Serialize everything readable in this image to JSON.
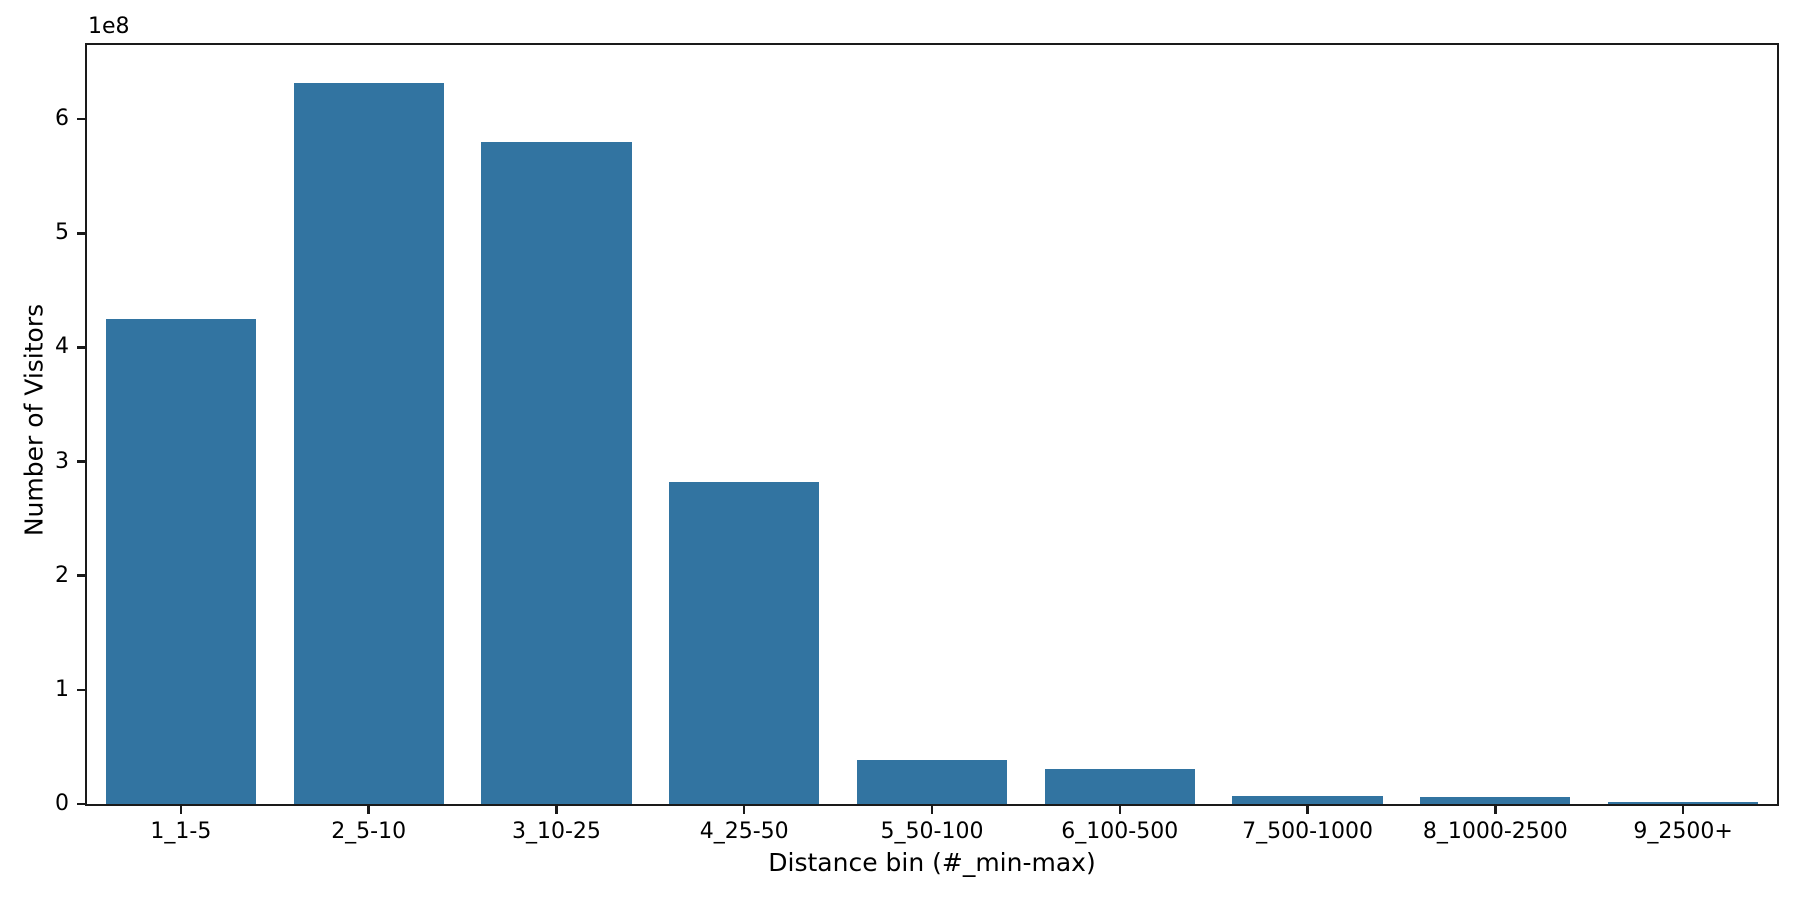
{
  "window": {
    "background": "#ffffff"
  },
  "chart_data": {
    "type": "bar",
    "title": "",
    "xlabel": "Distance bin (#_min-max)",
    "ylabel": "Number of Visitors",
    "y_offset_label": "1e8",
    "categories": [
      "1_1-5",
      "2_5-10",
      "3_10-25",
      "4_25-50",
      "5_50-100",
      "6_100-500",
      "7_500-1000",
      "8_1000-2500",
      "9_2500+"
    ],
    "values": [
      425000000,
      632000000,
      580000000,
      282000000,
      38500000,
      30500000,
      7000000,
      6500000,
      2000000
    ],
    "bar_color": "#3274a1",
    "axis_color": "#1a1a1a",
    "text_color": "#000000",
    "ylim": [
      0,
      665000000
    ],
    "yticks": [
      0,
      100000000,
      200000000,
      300000000,
      400000000,
      500000000,
      600000000
    ],
    "ytick_labels": [
      "0",
      "1",
      "2",
      "3",
      "4",
      "5",
      "6"
    ],
    "bar_width_fraction": 0.8,
    "grid": false,
    "legend": null
  }
}
